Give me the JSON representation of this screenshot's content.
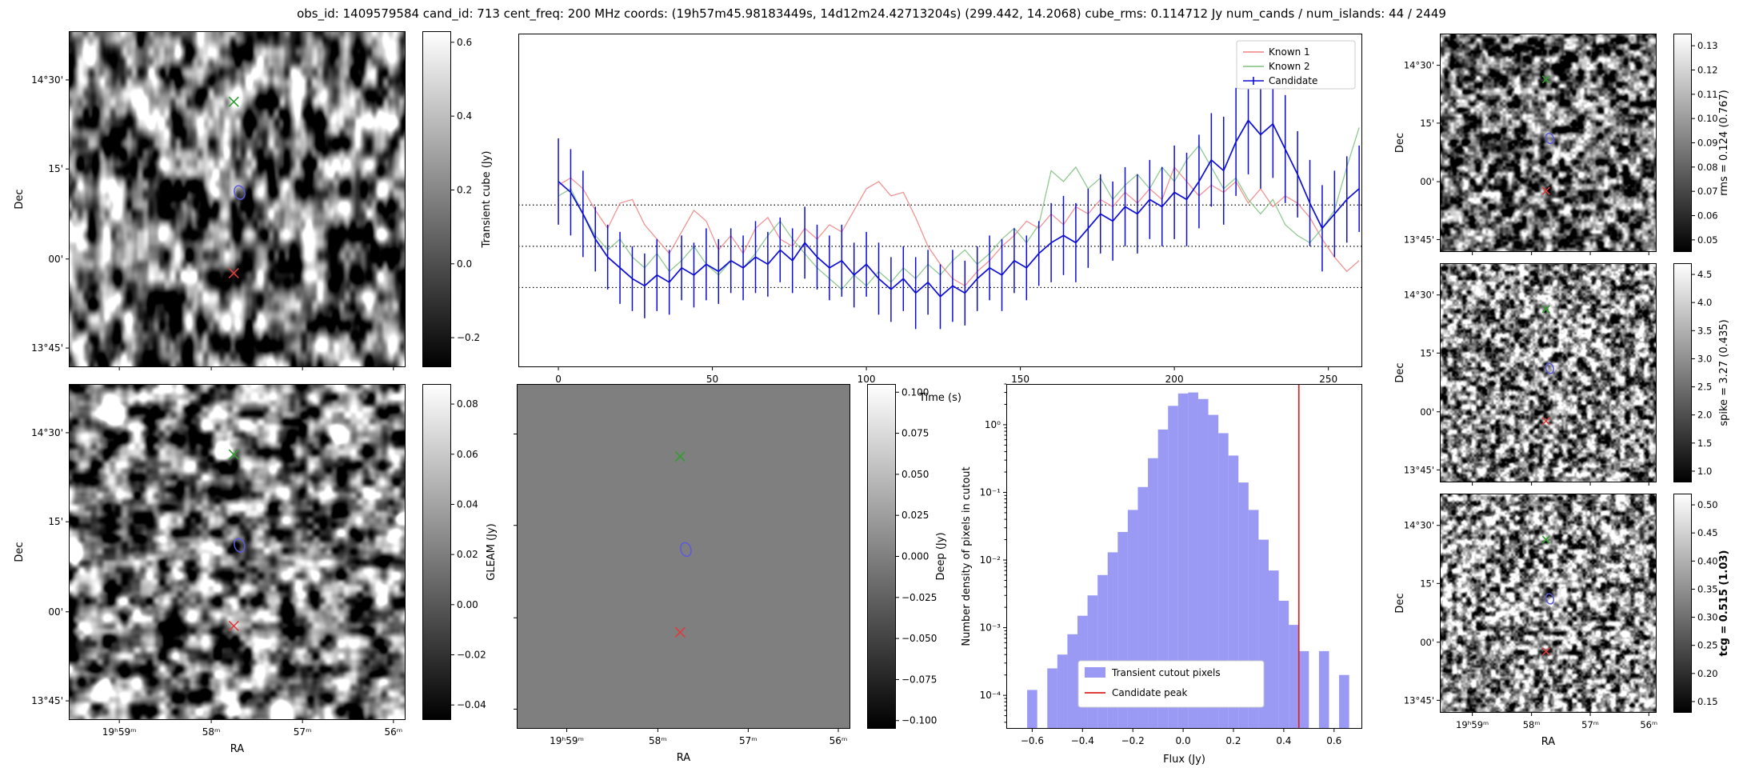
{
  "title": "obs_id: 1409579584 cand_id: 713 cent_freq: 200 MHz coords: (19h57m45.98183449s, 14d12m24.42713204s) (299.442, 14.2068) cube_rms: 0.114712 Jy num_cands / num_islands: 44 / 2449",
  "axes": {
    "dec_label": "Dec",
    "ra_label": "RA",
    "dec_ticks": [
      [
        "14°30'",
        0.145
      ],
      [
        "15'",
        0.41
      ],
      [
        "00'",
        0.678
      ],
      [
        "13°45'",
        0.943
      ]
    ],
    "ra_ticks": [
      [
        "19ʰ59ᵐ",
        0.15
      ],
      [
        "58ᵐ",
        0.423
      ],
      [
        "57ᵐ",
        0.694
      ],
      [
        "56ᵐ",
        0.964
      ]
    ]
  },
  "markers": [
    {
      "shape": "x",
      "color": "#2f9e2f",
      "fx": 0.49,
      "fy": 0.21,
      "name": "known-source-1-marker"
    },
    {
      "shape": "ellipse",
      "color": "#5a5ae0",
      "fx": 0.507,
      "fy": 0.48,
      "name": "candidate-marker"
    },
    {
      "shape": "x",
      "color": "#e03a3a",
      "fx": 0.49,
      "fy": 0.72,
      "name": "known-source-2-marker"
    }
  ],
  "panels": {
    "transient": {
      "colorbar": {
        "label": "Transient cube (Jy)",
        "vmin": -0.28,
        "vmax": 0.63,
        "ticks": [
          [
            0.6,
            "0.6"
          ],
          [
            0.4,
            "0.4"
          ],
          [
            0.2,
            "0.2"
          ],
          [
            0,
            "0.0"
          ],
          [
            -0.2,
            "−0.2"
          ]
        ]
      }
    },
    "gleam": {
      "colorbar": {
        "label": "GLEAM (Jy)",
        "vmin": -0.046,
        "vmax": 0.088,
        "ticks": [
          [
            0.08,
            "0.08"
          ],
          [
            0.06,
            "0.06"
          ],
          [
            0.04,
            "0.04"
          ],
          [
            0.02,
            "0.02"
          ],
          [
            0,
            "0.00"
          ],
          [
            -0.02,
            "−0.02"
          ],
          [
            -0.04,
            "−0.04"
          ]
        ]
      }
    },
    "deep": {
      "colorbar": {
        "label": "Deep (Jy)",
        "vmin": -0.105,
        "vmax": 0.105,
        "ticks": [
          [
            0.1,
            "0.100"
          ],
          [
            0.075,
            "0.075"
          ],
          [
            0.05,
            "0.050"
          ],
          [
            0.025,
            "0.025"
          ],
          [
            0,
            "0.000"
          ],
          [
            -0.025,
            "−0.025"
          ],
          [
            -0.05,
            "−0.050"
          ],
          [
            -0.075,
            "−0.075"
          ],
          [
            -0.1,
            "−0.100"
          ]
        ]
      }
    },
    "rms": {
      "colorbar": {
        "label": "rms = 0.124 (0.767)",
        "vmin": 0.045,
        "vmax": 0.135,
        "ticks": [
          [
            0.13,
            "0.13"
          ],
          [
            0.12,
            "0.12"
          ],
          [
            0.11,
            "0.11"
          ],
          [
            0.1,
            "0.10"
          ],
          [
            0.09,
            "0.09"
          ],
          [
            0.08,
            "0.08"
          ],
          [
            0.07,
            "0.07"
          ],
          [
            0.06,
            "0.06"
          ],
          [
            0.05,
            "0.05"
          ]
        ]
      }
    },
    "spike": {
      "colorbar": {
        "label": "spike = 3.27 (0.435)",
        "vmin": 0.8,
        "vmax": 4.7,
        "ticks": [
          [
            4.5,
            "4.5"
          ],
          [
            4,
            "4.0"
          ],
          [
            3.5,
            "3.5"
          ],
          [
            3,
            "3.0"
          ],
          [
            2.5,
            "2.5"
          ],
          [
            2,
            "2.0"
          ],
          [
            1.5,
            "1.5"
          ],
          [
            1,
            "1.0"
          ]
        ]
      }
    },
    "tcg": {
      "colorbar": {
        "label": "tcg = 0.515 (1.03)",
        "bold": true,
        "vmin": 0.13,
        "vmax": 0.52,
        "ticks": [
          [
            0.5,
            "0.50"
          ],
          [
            0.45,
            "0.45"
          ],
          [
            0.4,
            "0.40"
          ],
          [
            0.35,
            "0.35"
          ],
          [
            0.3,
            "0.30"
          ],
          [
            0.25,
            "0.25"
          ],
          [
            0.2,
            "0.20"
          ],
          [
            0.15,
            "0.15"
          ]
        ]
      }
    }
  },
  "chart_data": [
    {
      "type": "line",
      "title": "",
      "xlabel": "Time (s)",
      "ylabel": "",
      "x_ticks": [
        0,
        50,
        100,
        150,
        200,
        250
      ],
      "xlim": [
        -13,
        261
      ],
      "ylim": [
        -0.336,
        0.591
      ],
      "hlines": [
        0.114712,
        0,
        -0.114712
      ],
      "legend_loc": "upper right",
      "x": [
        0,
        4,
        8,
        12,
        16,
        20,
        24,
        28,
        32,
        36,
        40,
        44,
        48,
        52,
        56,
        60,
        64,
        68,
        72,
        76,
        80,
        84,
        88,
        92,
        96,
        100,
        104,
        108,
        112,
        116,
        120,
        124,
        128,
        132,
        136,
        140,
        144,
        148,
        152,
        156,
        160,
        164,
        168,
        172,
        176,
        180,
        184,
        188,
        192,
        196,
        200,
        204,
        208,
        212,
        216,
        220,
        224,
        228,
        232,
        236,
        240,
        244,
        248,
        252,
        256,
        260
      ],
      "series": [
        {
          "name": "Known 1",
          "color": "#f08080",
          "values": [
            0.17,
            0.19,
            0.16,
            0.1,
            0.05,
            0.12,
            0.13,
            0.06,
            0.02,
            -0.02,
            0.04,
            0.1,
            0.07,
            -0.01,
            0.03,
            -0.02,
            0.05,
            0.08,
            0.02,
            0.0,
            0.05,
            0.02,
            0.06,
            0.04,
            0.1,
            0.16,
            0.18,
            0.14,
            0.15,
            0.08,
            0.0,
            -0.05,
            -0.09,
            -0.11,
            -0.07,
            -0.04,
            0.0,
            0.03,
            0.07,
            0.05,
            0.09,
            0.06,
            0.11,
            0.09,
            0.13,
            0.11,
            0.15,
            0.12,
            0.16,
            0.13,
            0.22,
            0.18,
            0.14,
            0.17,
            0.15,
            0.18,
            0.12,
            0.16,
            0.11,
            0.14,
            0.12,
            0.08,
            0.02,
            -0.03,
            -0.07,
            -0.04
          ]
        },
        {
          "name": "Known 2",
          "color": "#7dbf7d",
          "values": [
            0.14,
            0.16,
            0.09,
            0.03,
            -0.01,
            0.02,
            -0.03,
            -0.06,
            -0.02,
            -0.07,
            -0.04,
            0.0,
            -0.05,
            -0.08,
            -0.04,
            -0.06,
            -0.02,
            0.03,
            0.07,
            0.02,
            -0.02,
            -0.06,
            -0.09,
            -0.12,
            -0.08,
            -0.11,
            -0.07,
            -0.1,
            -0.06,
            -0.09,
            -0.05,
            -0.08,
            -0.04,
            -0.01,
            -0.05,
            -0.02,
            0.02,
            0.05,
            0.01,
            0.06,
            0.21,
            0.18,
            0.22,
            0.16,
            0.19,
            0.13,
            0.17,
            0.2,
            0.16,
            0.22,
            0.18,
            0.24,
            0.28,
            0.22,
            0.16,
            0.19,
            0.13,
            0.09,
            0.13,
            0.06,
            0.03,
            0.01,
            0.05,
            0.1,
            0.22,
            0.33
          ]
        },
        {
          "name": "Candidate",
          "color": "#0d0dd8",
          "values": [
            0.18,
            0.15,
            0.09,
            0.02,
            -0.03,
            -0.06,
            -0.09,
            -0.11,
            -0.08,
            -0.1,
            -0.06,
            -0.08,
            -0.05,
            -0.07,
            -0.04,
            -0.06,
            -0.03,
            -0.05,
            -0.01,
            -0.04,
            0.01,
            -0.03,
            -0.06,
            -0.04,
            -0.08,
            -0.05,
            -0.09,
            -0.12,
            -0.09,
            -0.13,
            -0.1,
            -0.14,
            -0.11,
            -0.13,
            -0.09,
            -0.06,
            -0.08,
            -0.04,
            -0.06,
            -0.02,
            0.01,
            0.03,
            0.01,
            0.05,
            0.09,
            0.07,
            0.11,
            0.09,
            0.13,
            0.11,
            0.15,
            0.13,
            0.18,
            0.24,
            0.21,
            0.29,
            0.35,
            0.31,
            0.34,
            0.27,
            0.2,
            0.12,
            0.05,
            0.09,
            0.13,
            0.16
          ],
          "yerr": [
            0.12,
            0.12,
            0.12,
            0.09,
            0.09,
            0.1,
            0.09,
            0.09,
            0.1,
            0.09,
            0.09,
            0.09,
            0.1,
            0.09,
            0.09,
            0.09,
            0.1,
            0.09,
            0.09,
            0.09,
            0.1,
            0.09,
            0.09,
            0.1,
            0.09,
            0.09,
            0.1,
            0.09,
            0.09,
            0.1,
            0.09,
            0.09,
            0.1,
            0.09,
            0.09,
            0.09,
            0.1,
            0.09,
            0.09,
            0.09,
            0.11,
            0.11,
            0.11,
            0.11,
            0.11,
            0.11,
            0.11,
            0.11,
            0.11,
            0.11,
            0.13,
            0.13,
            0.13,
            0.13,
            0.15,
            0.15,
            0.15,
            0.15,
            0.15,
            0.15,
            0.12,
            0.12,
            0.12,
            0.12,
            0.12,
            0.12
          ]
        }
      ]
    },
    {
      "type": "bar",
      "title": "",
      "xlabel": "Flux (Jy)",
      "ylabel": "Number density of pixels in cutout",
      "yscale": "log",
      "xlim": [
        -0.703,
        0.712
      ],
      "ylim": [
        3.2e-05,
        4.0
      ],
      "x_ticks": [
        [
          -0.6,
          "−0.6"
        ],
        [
          -0.4,
          "−0.4"
        ],
        [
          -0.2,
          "−0.2"
        ],
        [
          0,
          "0.0"
        ],
        [
          0.2,
          "0.2"
        ],
        [
          0.4,
          "0.4"
        ],
        [
          0.6,
          "0.6"
        ]
      ],
      "y_ticks": [
        [
          1,
          "10⁰"
        ],
        [
          0.1,
          "10⁻¹"
        ],
        [
          0.01,
          "10⁻²"
        ],
        [
          0.001,
          "10⁻³"
        ],
        [
          0.0001,
          "10⁻⁴"
        ]
      ],
      "bin_width": 0.04,
      "bin_centers": [
        -0.6,
        -0.56,
        -0.52,
        -0.48,
        -0.44,
        -0.4,
        -0.36,
        -0.32,
        -0.28,
        -0.24,
        -0.2,
        -0.16,
        -0.12,
        -0.08,
        -0.04,
        0.0,
        0.04,
        0.08,
        0.12,
        0.16,
        0.2,
        0.24,
        0.28,
        0.32,
        0.36,
        0.4,
        0.44,
        0.48,
        0.52,
        0.56,
        0.6,
        0.64
      ],
      "densities": [
        0.00012,
        0,
        0.00025,
        0.0004,
        0.0008,
        0.0015,
        0.003,
        0.006,
        0.013,
        0.026,
        0.055,
        0.12,
        0.32,
        0.85,
        1.9,
        2.9,
        3.0,
        2.4,
        1.4,
        0.75,
        0.35,
        0.14,
        0.055,
        0.02,
        0.007,
        0.0025,
        0.0011,
        0.00045,
        0,
        0.00045,
        0,
        0.0002
      ],
      "bar_color": "#8181f2",
      "candidate_peak": 0.46,
      "peak_color": "#dd2222",
      "legend": [
        {
          "label": "Transient cutout pixels",
          "type": "patch"
        },
        {
          "label": "Candidate peak",
          "type": "line"
        }
      ]
    },
    {
      "type": "heatmap",
      "description": "Grayscale sky cutouts centred on the candidate position",
      "panels": [
        {
          "name": "Transient cube",
          "colorbar_label": "Transient cube (Jy)",
          "value_range": [
            -0.28,
            0.63
          ]
        },
        {
          "name": "GLEAM",
          "colorbar_label": "GLEAM (Jy)",
          "value_range": [
            -0.046,
            0.088
          ]
        },
        {
          "name": "Deep",
          "colorbar_label": "Deep (Jy)",
          "value_range": [
            -0.105,
            0.105
          ],
          "uniform_value": 0
        },
        {
          "name": "rms",
          "colorbar_label": "rms = 0.124 (0.767)",
          "value_range": [
            0.045,
            0.135
          ]
        },
        {
          "name": "spike",
          "colorbar_label": "spike = 3.27 (0.435)",
          "value_range": [
            0.8,
            4.7
          ]
        },
        {
          "name": "tcg",
          "colorbar_label": "tcg = 0.515 (1.03)",
          "value_range": [
            0.13,
            0.52
          ]
        }
      ]
    }
  ]
}
